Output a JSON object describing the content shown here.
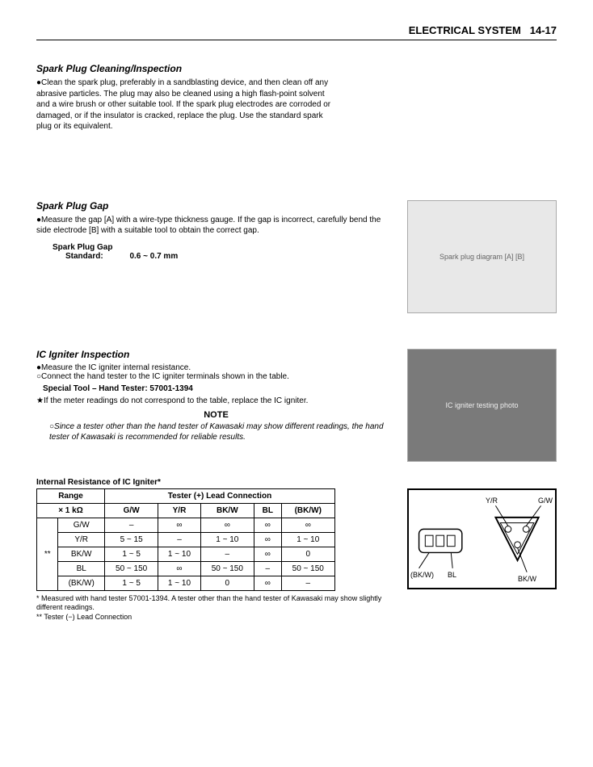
{
  "header": {
    "section": "ELECTRICAL SYSTEM",
    "page": "14-17"
  },
  "sections": {
    "cleaning": {
      "title": "Spark Plug Cleaning/Inspection",
      "body": "●Clean the spark plug, preferably in a sandblasting device, and then clean off any abrasive particles. The plug may also be cleaned using a high flash-point solvent and a wire brush or other suitable tool. If the spark plug electrodes are corroded or damaged, or if the insulator is cracked, replace the plug. Use the standard spark plug or its equivalent."
    },
    "gap": {
      "title": "Spark Plug Gap",
      "body": "●Measure the gap [A] with a wire-type thickness gauge. If the gap is incorrect, carefully bend the side electrode [B] with a suitable tool to obtain the correct gap.",
      "spec_title": "Spark Plug Gap",
      "spec_label": "Standard:",
      "spec_value": "0.6 ~ 0.7 mm",
      "image_caption": "Spark plug diagram [A] [B]"
    },
    "igniter": {
      "title": "IC Igniter Inspection",
      "line1": "●Measure the IC igniter internal resistance.",
      "line2": "○Connect the hand tester to the IC igniter terminals shown in the table.",
      "tool_label": "Special Tool – Hand Tester: 57001-1394",
      "star_line": "★If the meter readings do not correspond to the table, replace the IC igniter.",
      "note_title": "NOTE",
      "note_body": "○Since a tester other than the hand tester of Kawasaki may show different readings, the hand tester of Kawasaki is recommended for reliable results.",
      "image_caption": "IC igniter testing photo"
    },
    "table": {
      "title": "Internal Resistance of IC Igniter*",
      "range_header": "Range",
      "range_unit": "× 1 kΩ",
      "tester_header": "Tester (+) Lead Connection",
      "col_marker": "**",
      "cols": [
        "G/W",
        "Y/R",
        "BK/W",
        "BL",
        "(BK/W)"
      ],
      "rows": [
        {
          "label": "G/W",
          "cells": [
            "–",
            "∞",
            "∞",
            "∞",
            "∞"
          ]
        },
        {
          "label": "Y/R",
          "cells": [
            "5 ~ 15",
            "–",
            "1 ~ 10",
            "∞",
            "1 ~ 10"
          ]
        },
        {
          "label": "BK/W",
          "cells": [
            "1 ~ 5",
            "1 ~ 10",
            "–",
            "∞",
            "0"
          ]
        },
        {
          "label": "BL",
          "cells": [
            "50 ~ 150",
            "∞",
            "50 ~ 150",
            "–",
            "50 ~ 150"
          ]
        },
        {
          "label": "(BK/W)",
          "cells": [
            "1 ~ 5",
            "1 ~ 10",
            "0",
            "∞",
            "–"
          ]
        }
      ]
    },
    "footnotes": {
      "f1": "*   Measured with hand tester 57001-1394. A tester other than the hand tester of Kawasaki may show slightly different readings.",
      "f2": "** Tester (−) Lead Connection"
    },
    "connector": {
      "labels": {
        "yr": "Y/R",
        "gw": "G/W",
        "bkw_left": "(BK/W)",
        "bl": "BL",
        "bkw_right": "BK/W"
      }
    }
  }
}
